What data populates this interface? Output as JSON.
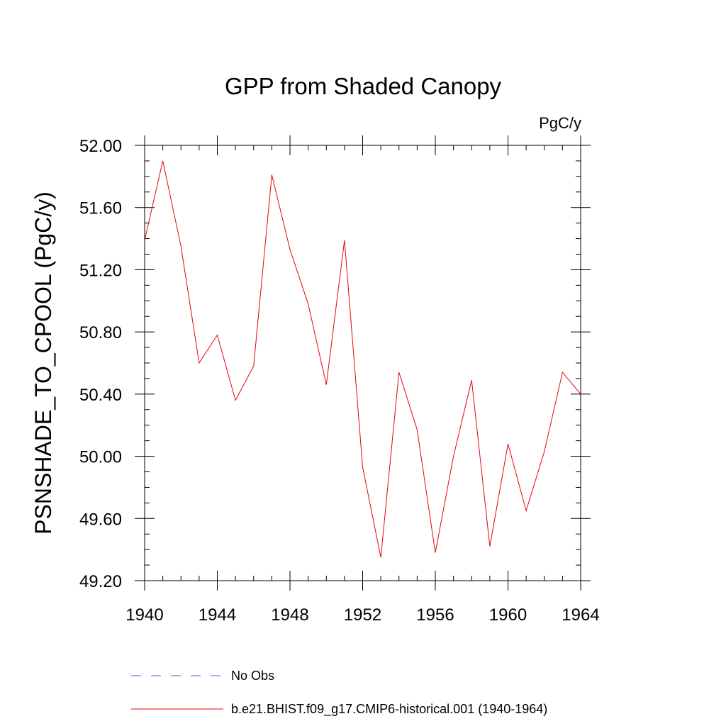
{
  "chart_data": {
    "type": "line",
    "title": "GPP from Shaded Canopy",
    "units_label": "PgC/y",
    "ylabel": "PSNSHADE_TO_CPOOL  (PgC/y)",
    "xlabel": "",
    "xlim": [
      1940,
      1964
    ],
    "ylim": [
      49.2,
      52.0
    ],
    "x_ticks": [
      "1940",
      "1944",
      "1948",
      "1952",
      "1956",
      "1960",
      "1964"
    ],
    "y_ticks": [
      "49.20",
      "49.60",
      "50.00",
      "50.40",
      "50.80",
      "51.20",
      "51.60",
      "52.00"
    ],
    "series": [
      {
        "name": "b.e21.BHIST.f09_g17.CMIP6-historical.001 (1940-1964)",
        "color": "#e8000b",
        "x": [
          1940,
          1941,
          1942,
          1943,
          1944,
          1945,
          1946,
          1947,
          1948,
          1949,
          1950,
          1951,
          1952,
          1953,
          1954,
          1955,
          1956,
          1957,
          1958,
          1959,
          1960,
          1961,
          1962,
          1963,
          1964
        ],
        "values": [
          51.39,
          51.9,
          51.35,
          50.6,
          50.78,
          50.36,
          50.58,
          51.81,
          51.33,
          50.98,
          50.46,
          51.39,
          49.93,
          49.35,
          50.54,
          50.17,
          49.38,
          50.0,
          50.49,
          49.42,
          50.08,
          49.65,
          50.03,
          50.54,
          50.4
        ]
      }
    ],
    "legend": [
      {
        "label": "No Obs",
        "color": "#5b5bd6",
        "style": "dashed"
      },
      {
        "label": "b.e21.BHIST.f09_g17.CMIP6-historical.001 (1940-1964)",
        "color": "#e8000b",
        "style": "solid"
      }
    ]
  }
}
